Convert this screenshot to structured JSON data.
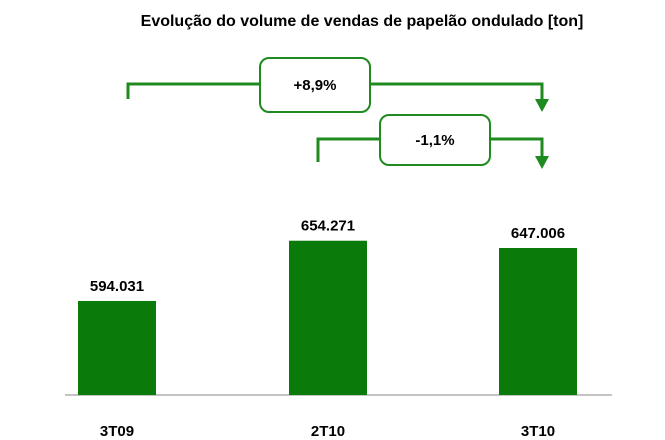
{
  "chart_data": {
    "type": "bar",
    "title": "Evolução do volume de vendas de papelão ondulado [ton]",
    "categories": [
      "3T09",
      "2T10",
      "3T10"
    ],
    "values": [
      594031,
      654271,
      647006
    ],
    "value_labels": [
      "594.031",
      "654.271",
      "647.006"
    ],
    "color": "#0a7a0a",
    "ylim": [
      500000,
      700000
    ],
    "annotations": [
      "+8,9%",
      "-1,1%"
    ]
  }
}
